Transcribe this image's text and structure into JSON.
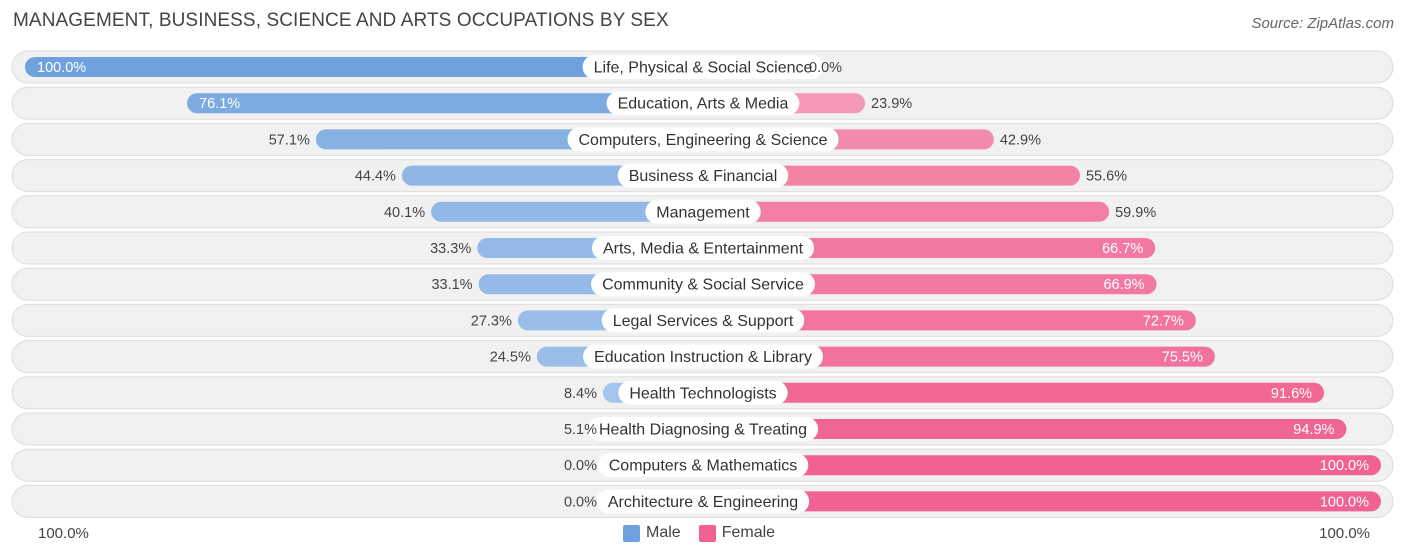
{
  "title": "MANAGEMENT, BUSINESS, SCIENCE AND ARTS OCCUPATIONS BY SEX",
  "source": "Source: ZipAtlas.com",
  "colors": {
    "male_strong": "#6ea1dd",
    "male_light": "#a9c7ec",
    "female_strong": "#f0628f",
    "female_light": "#f6a9c1",
    "row_bg": "#f1f1f1",
    "row_border": "#dddddd"
  },
  "legend": {
    "male": "Male",
    "female": "Female"
  },
  "axis": {
    "left": "100.0%",
    "right": "100.0%"
  },
  "chart_data": {
    "type": "bar",
    "orientation": "horizontal-diverging",
    "title": "MANAGEMENT, BUSINESS, SCIENCE AND ARTS OCCUPATIONS BY SEX",
    "xlim": [
      0,
      100
    ],
    "categories": [
      "Life, Physical & Social Science",
      "Education, Arts & Media",
      "Computers, Engineering & Science",
      "Business & Financial",
      "Management",
      "Arts, Media & Entertainment",
      "Community & Social Service",
      "Legal Services & Support",
      "Education Instruction & Library",
      "Health Technologists",
      "Health Diagnosing & Treating",
      "Computers & Mathematics",
      "Architecture & Engineering"
    ],
    "series": [
      {
        "name": "Male",
        "values": [
          100.0,
          76.1,
          57.1,
          44.4,
          40.1,
          33.3,
          33.1,
          27.3,
          24.5,
          8.4,
          5.1,
          0.0,
          0.0
        ],
        "labels": [
          "100.0%",
          "76.1%",
          "57.1%",
          "44.4%",
          "40.1%",
          "33.3%",
          "33.1%",
          "27.3%",
          "24.5%",
          "8.4%",
          "5.1%",
          "0.0%",
          "0.0%"
        ]
      },
      {
        "name": "Female",
        "values": [
          0.0,
          23.9,
          42.9,
          55.6,
          59.9,
          66.7,
          66.9,
          72.7,
          75.5,
          91.6,
          94.9,
          100.0,
          100.0
        ],
        "labels": [
          "0.0%",
          "23.9%",
          "42.9%",
          "55.6%",
          "59.9%",
          "66.7%",
          "66.9%",
          "72.7%",
          "75.5%",
          "91.6%",
          "94.9%",
          "100.0%",
          "100.0%"
        ]
      }
    ]
  }
}
